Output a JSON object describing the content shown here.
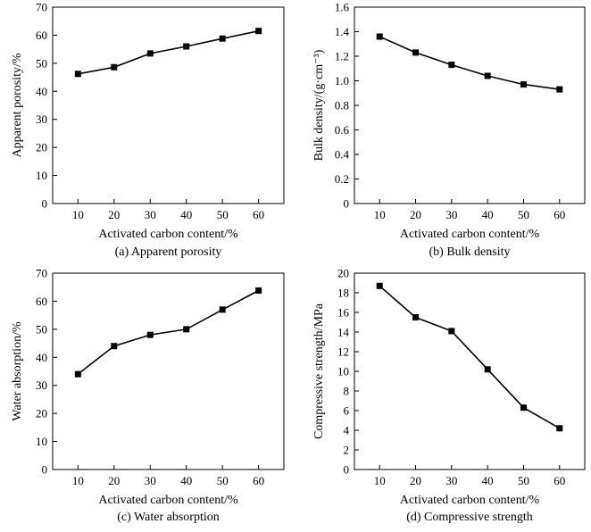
{
  "chart_data": [
    {
      "type": "line",
      "x": [
        10,
        20,
        30,
        40,
        50,
        60
      ],
      "series": [
        {
          "values": [
            46.2,
            48.6,
            53.5,
            56.0,
            58.8,
            61.5
          ]
        }
      ],
      "xlabel": "Activated carbon content/%",
      "ylabel": "Apparent porosity/%",
      "caption": "(a) Apparent porosity",
      "xticks": [
        "10",
        "20",
        "30",
        "40",
        "50",
        "60"
      ],
      "yticks": [
        "0",
        "10",
        "20",
        "30",
        "40",
        "50",
        "60",
        "70"
      ],
      "xlim": [
        3,
        67
      ],
      "ylim": [
        0,
        70
      ],
      "grid": false
    },
    {
      "type": "line",
      "x": [
        10,
        20,
        30,
        40,
        50,
        60
      ],
      "series": [
        {
          "values": [
            1.36,
            1.23,
            1.13,
            1.04,
            0.97,
            0.93
          ]
        }
      ],
      "xlabel": "Activated carbon content/%",
      "ylabel": "Bulk density/(g·cm⁻³)",
      "caption": "(b) Bulk density",
      "xticks": [
        "10",
        "20",
        "30",
        "40",
        "50",
        "60"
      ],
      "yticks": [
        "0",
        "0.2",
        "0.4",
        "0.6",
        "0.8",
        "1.0",
        "1.2",
        "1.4",
        "1.6"
      ],
      "xlim": [
        3,
        67
      ],
      "ylim": [
        0,
        1.6
      ],
      "grid": false
    },
    {
      "type": "line",
      "x": [
        10,
        20,
        30,
        40,
        50,
        60
      ],
      "series": [
        {
          "values": [
            34.0,
            44.0,
            48.0,
            50.0,
            57.0,
            63.8
          ]
        }
      ],
      "xlabel": "Activated carbon content/%",
      "ylabel": "Water absorption/%",
      "caption": "(c) Water absorption",
      "xticks": [
        "10",
        "20",
        "30",
        "40",
        "50",
        "60"
      ],
      "yticks": [
        "0",
        "10",
        "20",
        "30",
        "40",
        "50",
        "60",
        "70"
      ],
      "xlim": [
        3,
        67
      ],
      "ylim": [
        0,
        70
      ],
      "grid": false
    },
    {
      "type": "line",
      "x": [
        10,
        20,
        30,
        40,
        50,
        60
      ],
      "series": [
        {
          "values": [
            18.7,
            15.5,
            14.1,
            10.2,
            6.3,
            4.2
          ]
        }
      ],
      "xlabel": "Activated carbon content/%",
      "ylabel": "Compressive strength/MPa",
      "caption": "(d) Compressive strength",
      "xticks": [
        "10",
        "20",
        "30",
        "40",
        "50",
        "60"
      ],
      "yticks": [
        "0",
        "2",
        "4",
        "6",
        "8",
        "10",
        "12",
        "14",
        "16",
        "18",
        "20"
      ],
      "xlim": [
        3,
        67
      ],
      "ylim": [
        0,
        20
      ],
      "grid": false
    }
  ]
}
